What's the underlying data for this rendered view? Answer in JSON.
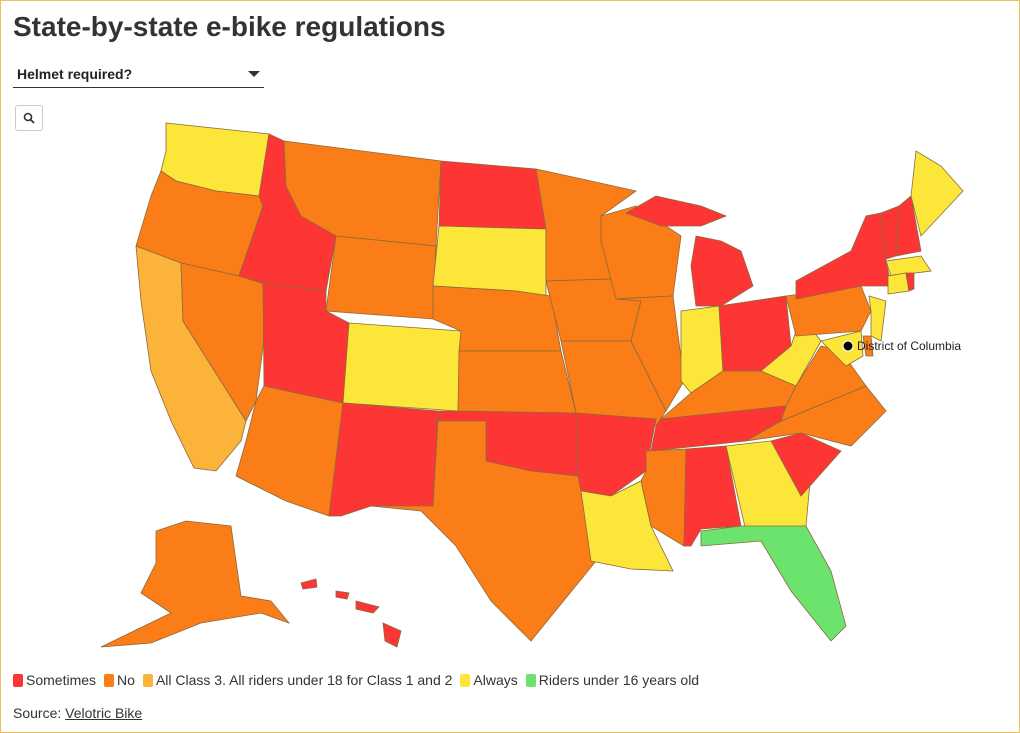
{
  "header": {
    "title": "State-by-state e-bike regulations"
  },
  "filter": {
    "label": "Helmet required?"
  },
  "legend": [
    {
      "label": "Sometimes",
      "color": "#fe3535"
    },
    {
      "label": "No",
      "color": "#fb7d17"
    },
    {
      "label": "All Class 3. All riders under 18 for Class 1 and 2",
      "color": "#fbb33a"
    },
    {
      "label": "Always",
      "color": "#fde63a"
    },
    {
      "label": "Riders under 16 years old",
      "color": "#6ce36c"
    }
  ],
  "map": {
    "regions": [
      3,
      1,
      2,
      1,
      0,
      1,
      1,
      0,
      3,
      1,
      0,
      0,
      3,
      1,
      1,
      0,
      1,
      1,
      1,
      1,
      0,
      3,
      1,
      1,
      0,
      3,
      0,
      1,
      0,
      1,
      0,
      3,
      4,
      0,
      1,
      1,
      3,
      1,
      0,
      0,
      0,
      3,
      3,
      3,
      0,
      3,
      1,
      3,
      1,
      0
    ],
    "markers": [
      {
        "label": "District of Columbia"
      }
    ]
  },
  "footer": {
    "source_label": "Source:",
    "source_link": "Velotric Bike"
  }
}
